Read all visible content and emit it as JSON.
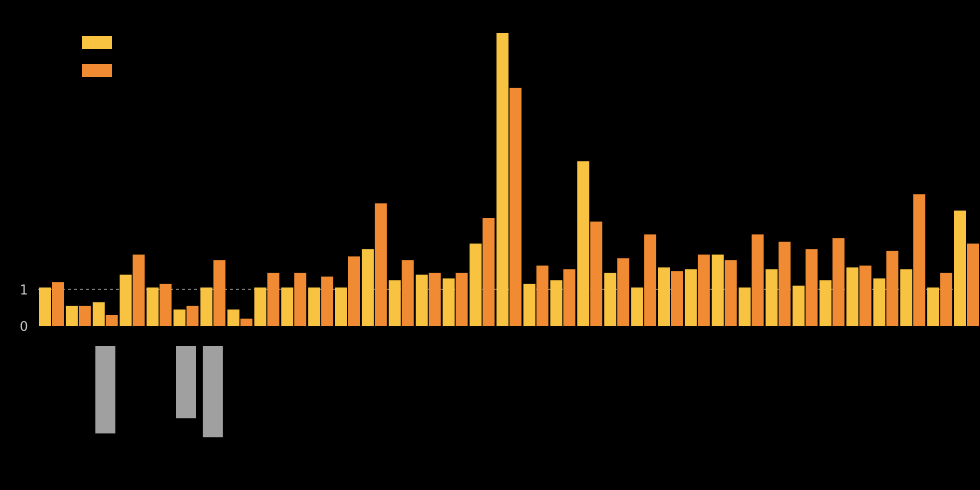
{
  "chart_data": {
    "type": "bar",
    "title": "",
    "xlabel": "",
    "ylabel": "",
    "ylim": [
      0,
      8
    ],
    "y_ticks": [
      1,
      0
    ],
    "grid": false,
    "reference_line": {
      "value": 1,
      "style": "dashed"
    },
    "legend": {
      "placement": "top-left"
    },
    "categories": [
      "",
      "",
      "",
      "",
      "",
      "",
      "",
      "",
      "",
      "",
      "",
      "",
      "",
      "",
      "",
      "",
      "",
      "",
      "",
      "",
      "",
      "",
      "",
      "",
      "",
      "",
      "",
      "",
      "",
      "",
      "",
      "",
      "",
      "",
      ""
    ],
    "series": [
      {
        "name": "",
        "color": "#F9C342",
        "values": [
          1.05,
          0.55,
          0.65,
          1.4,
          1.05,
          0.45,
          1.05,
          0.45,
          1.05,
          1.05,
          1.05,
          1.05,
          2.1,
          1.25,
          1.4,
          1.3,
          2.25,
          8.0,
          1.15,
          1.25,
          4.5,
          1.45,
          1.05,
          1.6,
          1.55,
          1.95,
          1.05,
          1.55,
          1.1,
          1.25,
          1.6,
          1.3,
          1.55,
          1.05,
          3.15
        ]
      },
      {
        "name": "",
        "color": "#F08A33",
        "values": [
          1.2,
          0.55,
          0.3,
          1.95,
          1.15,
          0.55,
          1.8,
          0.2,
          1.45,
          1.45,
          1.35,
          1.9,
          3.35,
          1.8,
          1.45,
          1.45,
          2.95,
          6.5,
          1.65,
          1.55,
          2.85,
          1.85,
          2.5,
          1.5,
          1.95,
          1.8,
          2.5,
          2.3,
          2.1,
          2.4,
          1.65,
          2.05,
          3.6,
          1.45,
          2.25
        ]
      }
    ],
    "category_bars": [
      {
        "color": "#000000",
        "height": 2.1
      },
      {
        "color": "#000000",
        "height": 2.3
      },
      {
        "color": "#A0A0A0",
        "height": 2.3
      },
      {
        "color": "#000000",
        "height": 2.4
      },
      {
        "color": "#000000",
        "height": 2.8
      },
      {
        "color": "#A0A0A0",
        "height": 1.9
      },
      {
        "color": "#A0A0A0",
        "height": 2.4
      },
      {
        "color": "#000000",
        "height": 2.2
      },
      {
        "color": "#000000",
        "height": 1.9
      },
      {
        "color": "#000000",
        "height": 1.8
      },
      {
        "color": "#000000",
        "height": 2.0
      },
      {
        "color": "#000000",
        "height": 2.2
      },
      {
        "color": "#000000",
        "height": 1.4
      },
      {
        "color": "#000000",
        "height": 1.6
      },
      {
        "color": "#000000",
        "height": 2.3
      },
      {
        "color": "#000000",
        "height": 1.7
      },
      {
        "color": "#000000",
        "height": 2.6
      },
      {
        "color": "#000000",
        "height": 2.0
      },
      {
        "color": "#000000",
        "height": 2.0
      },
      {
        "color": "#000000",
        "height": 2.2
      },
      {
        "color": "#000000",
        "height": 2.3
      },
      {
        "color": "#000000",
        "height": 1.9
      },
      {
        "color": "#000000",
        "height": 2.5
      },
      {
        "color": "#000000",
        "height": 2.1
      },
      {
        "color": "#000000",
        "height": 1.9
      },
      {
        "color": "#000000",
        "height": 1.9
      },
      {
        "color": "#000000",
        "height": 2.3
      },
      {
        "color": "#000000",
        "height": 2.0
      },
      {
        "color": "#000000",
        "height": 2.4
      },
      {
        "color": "#000000",
        "height": 2.4
      },
      {
        "color": "#000000",
        "height": 2.1
      },
      {
        "color": "#000000",
        "height": 2.0
      },
      {
        "color": "#000000",
        "height": 2.2
      },
      {
        "color": "#000000",
        "height": 2.4
      },
      {
        "color": "#000000",
        "height": 2.3
      }
    ]
  }
}
